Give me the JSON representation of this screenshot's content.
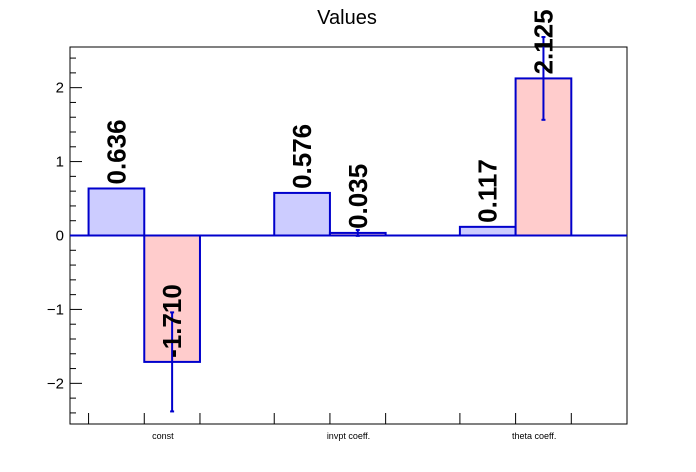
{
  "chart_data": {
    "type": "bar",
    "title": "Values",
    "categories": [
      "const",
      "invpt coeff.",
      "theta coeff."
    ],
    "ylim": [
      -2.55,
      2.55
    ],
    "yticks": [
      -2,
      -1,
      0,
      1,
      2
    ],
    "ytick_labels": [
      "−2",
      "−1",
      "0",
      "1",
      "2"
    ],
    "grid": false,
    "series": [
      {
        "color": "#ccccff",
        "values": [
          0.636,
          0.576,
          0.117
        ],
        "errors": [
          0.0,
          0.0,
          0.0
        ],
        "labels": [
          "0.636",
          "0.576",
          "0.117"
        ]
      },
      {
        "color": "#ffcccc",
        "values": [
          -1.71,
          0.035,
          2.125
        ],
        "errors": [
          0.67,
          0.04,
          0.56
        ],
        "labels": [
          "-1.710",
          "0.035",
          "2.125"
        ]
      }
    ],
    "edge_color": "#0000cc"
  }
}
